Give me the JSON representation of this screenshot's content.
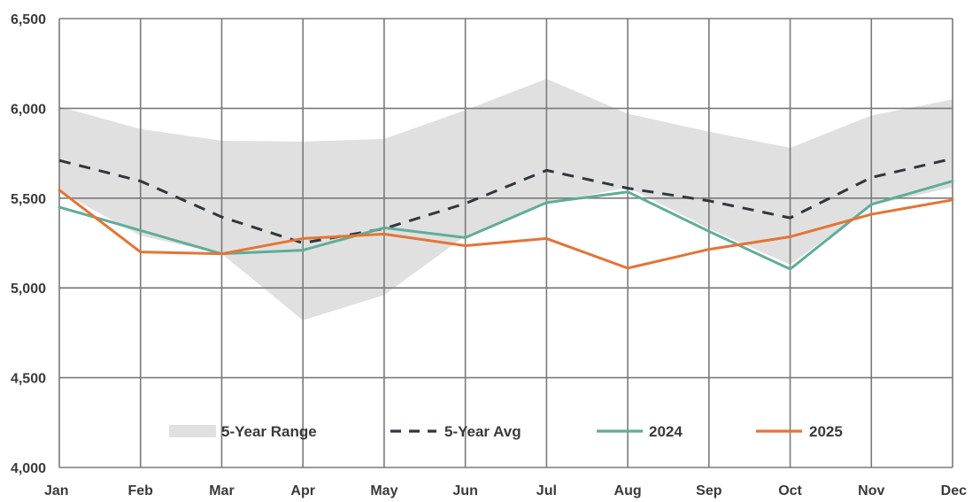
{
  "chart_data": {
    "type": "line",
    "categories": [
      "Jan",
      "Feb",
      "Mar",
      "Apr",
      "May",
      "Jun",
      "Jul",
      "Aug",
      "Sep",
      "Oct",
      "Nov",
      "Dec"
    ],
    "ylim": [
      4000,
      6500
    ],
    "yticks": [
      4000,
      4500,
      5000,
      5500,
      6000,
      6500
    ],
    "ytick_labels": [
      "4,000",
      "4,500",
      "5,000",
      "5,500",
      "6,000",
      "6,500"
    ],
    "grid": true,
    "legend_position": "bottom",
    "range": {
      "name": "5-Year Range",
      "color": "#e0e0e0",
      "high": [
        6010,
        5885,
        5820,
        5815,
        5830,
        5990,
        6165,
        5970,
        5870,
        5780,
        5960,
        6050
      ],
      "low": [
        5540,
        5290,
        5190,
        4820,
        4960,
        5290,
        5470,
        5560,
        5330,
        5130,
        5460,
        5560
      ]
    },
    "series": [
      {
        "name": "5-Year Avg",
        "color": "#2e3640",
        "dashed": true,
        "values": [
          5710,
          5595,
          5395,
          5250,
          5330,
          5470,
          5655,
          5555,
          5485,
          5390,
          5615,
          5720
        ]
      },
      {
        "name": "2024",
        "color": "#5fad98",
        "dashed": false,
        "values": [
          5450,
          5320,
          5190,
          5210,
          5335,
          5280,
          5475,
          5535,
          5315,
          5105,
          5465,
          5595
        ]
      },
      {
        "name": "2025",
        "color": "#e57434",
        "dashed": false,
        "values": [
          5545,
          5200,
          5190,
          5275,
          5300,
          5235,
          5275,
          5110,
          5215,
          5285,
          5410,
          5490
        ]
      }
    ]
  }
}
